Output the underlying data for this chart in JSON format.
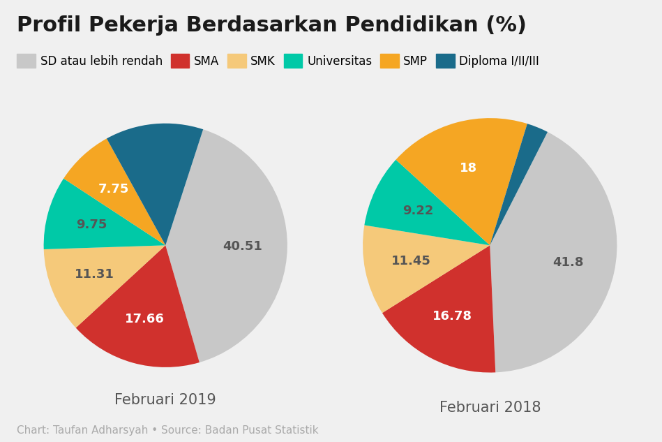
{
  "title": "Profil Pekerja Berdasarkan Pendidikan (%)",
  "background_color": "#f0f0f0",
  "categories": [
    "SD atau lebih rendah",
    "SMA",
    "SMK",
    "Universitas",
    "SMP",
    "Diploma I/II/III"
  ],
  "colors": [
    "#c8c8c8",
    "#d0312d",
    "#f5c97a",
    "#00c9a7",
    "#f5a623",
    "#1a6b8a"
  ],
  "pie2019": [
    40.51,
    17.66,
    11.31,
    9.75,
    7.75,
    13.02
  ],
  "pie2018": [
    41.8,
    16.78,
    11.45,
    9.22,
    18.0,
    2.75
  ],
  "labels2019": [
    "40.51",
    "17.66",
    "11.31",
    "9.75",
    "7.75",
    ""
  ],
  "labels2018": [
    "41.8",
    "16.78",
    "11.45",
    "9.22",
    "18",
    ""
  ],
  "label_colors_2019": [
    "#555555",
    "#ffffff",
    "#555555",
    "#555555",
    "#ffffff",
    "#ffffff"
  ],
  "label_colors_2018": [
    "#555555",
    "#ffffff",
    "#555555",
    "#555555",
    "#ffffff",
    "#ffffff"
  ],
  "startangle2019": 72,
  "startangle2018": 63,
  "label2019": "Februari 2019",
  "label2018": "Februari 2018",
  "footnote": "Chart: Taufan Adharsyah • Source: Badan Pusat Statistik",
  "title_fontsize": 22,
  "subtitle_fontsize": 13,
  "label_fontsize": 15,
  "legend_fontsize": 12,
  "footnote_fontsize": 11,
  "pie_label_fontsize": 13
}
